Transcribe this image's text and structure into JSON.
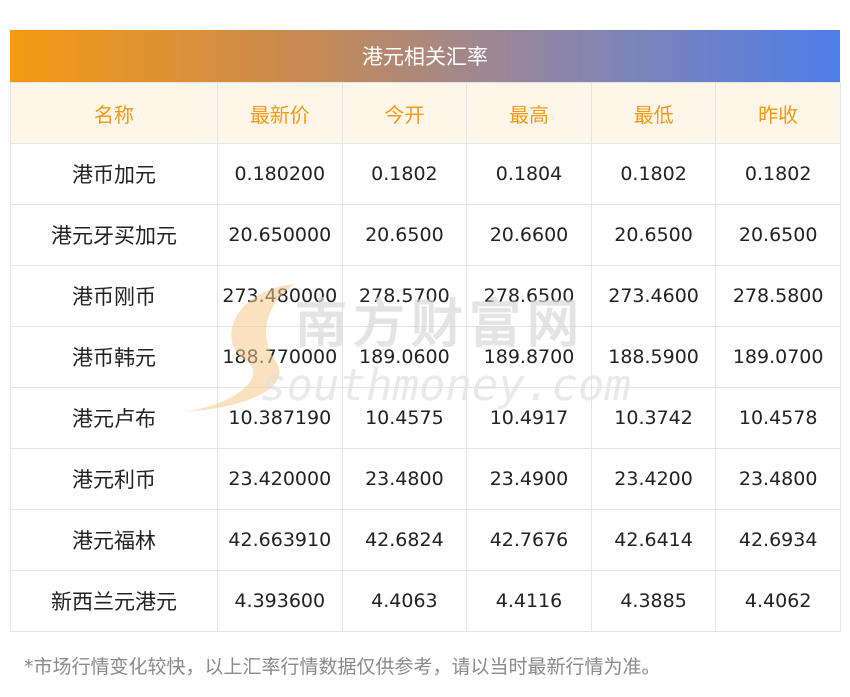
{
  "title": "港元相关汇率",
  "columns": [
    "名称",
    "最新价",
    "今开",
    "最高",
    "最低",
    "昨收"
  ],
  "rows": [
    {
      "name": "港币加元",
      "latest": "0.180200",
      "open": "0.1802",
      "high": "0.1804",
      "low": "0.1802",
      "prev_close": "0.1802"
    },
    {
      "name": "港元牙买加元",
      "latest": "20.650000",
      "open": "20.6500",
      "high": "20.6600",
      "low": "20.6500",
      "prev_close": "20.6500"
    },
    {
      "name": "港币刚币",
      "latest": "273.480000",
      "open": "278.5700",
      "high": "278.6500",
      "low": "273.4600",
      "prev_close": "278.5800"
    },
    {
      "name": "港币韩元",
      "latest": "188.770000",
      "open": "189.0600",
      "high": "189.8700",
      "low": "188.5900",
      "prev_close": "189.0700"
    },
    {
      "name": "港元卢布",
      "latest": "10.387190",
      "open": "10.4575",
      "high": "10.4917",
      "low": "10.3742",
      "prev_close": "10.4578"
    },
    {
      "name": "港元利币",
      "latest": "23.420000",
      "open": "23.4800",
      "high": "23.4900",
      "low": "23.4200",
      "prev_close": "23.4800"
    },
    {
      "name": "港元福林",
      "latest": "42.663910",
      "open": "42.6824",
      "high": "42.7676",
      "low": "42.6414",
      "prev_close": "42.6934"
    },
    {
      "name": "新西兰元港元",
      "latest": "4.393600",
      "open": "4.4063",
      "high": "4.4116",
      "low": "4.3885",
      "prev_close": "4.4062"
    }
  ],
  "watermark": {
    "brand_cn": "南方财富网",
    "brand_en": "southmoney.com"
  },
  "footnote": "*市场行情变化较快，以上汇率行情数据仅供参考，请以当时最新行情为准。",
  "colors": {
    "header_text": "#f39a12",
    "header_bg": "#fff6ea",
    "title_gradient_start": "#f39a12",
    "title_gradient_end": "#4d7ee8",
    "footnote": "#8a8a8a"
  }
}
